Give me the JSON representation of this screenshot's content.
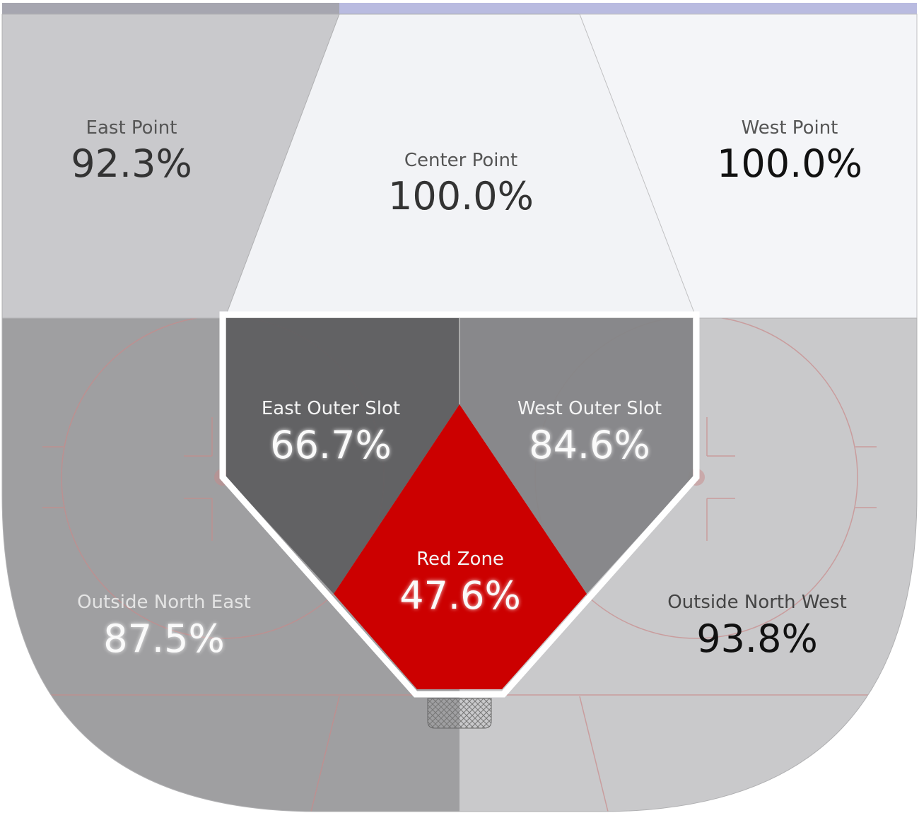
{
  "zones": [
    {
      "name": "East Point",
      "value": "92.3%"
    },
    {
      "name": "Center Point",
      "value": "100.0%"
    },
    {
      "name": "West Point",
      "value": "100.0%"
    },
    {
      "name": "East Outer Slot",
      "value": "66.7%"
    },
    {
      "name": "West Outer Slot",
      "value": "84.6%"
    },
    {
      "name": "Red Zone",
      "value": "47.6%"
    },
    {
      "name": "Outside North East",
      "value": "87.5%"
    },
    {
      "name": "Outside North West",
      "value": "93.8%"
    }
  ]
}
